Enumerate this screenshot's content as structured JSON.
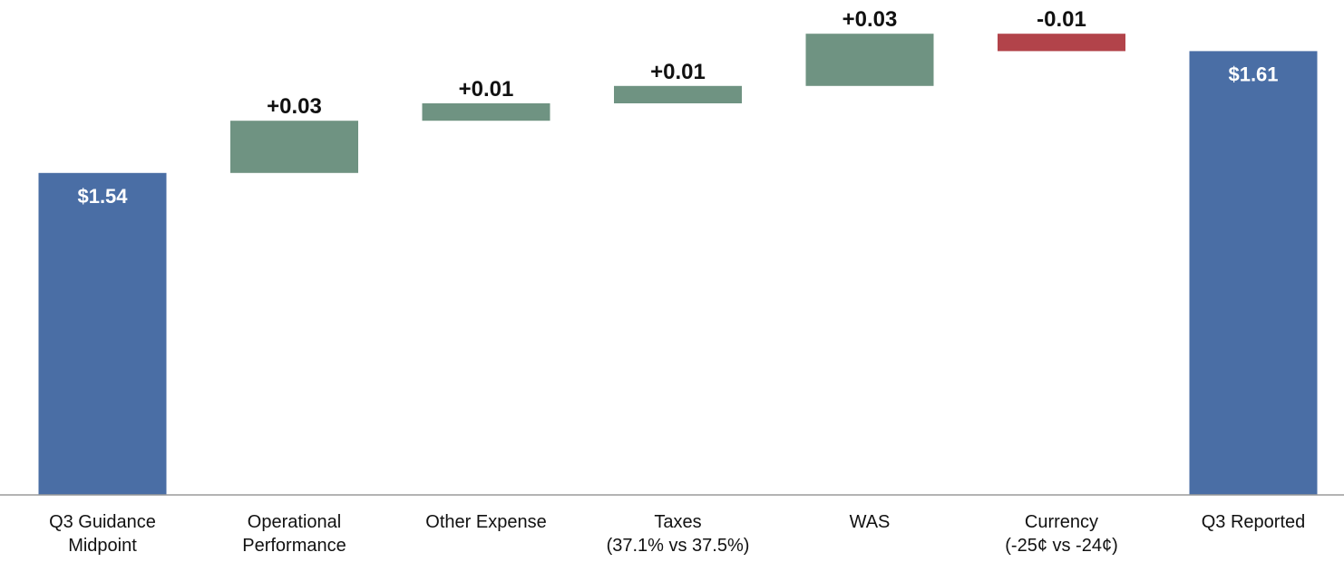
{
  "chart_data": {
    "type": "waterfall",
    "title": "",
    "xlabel": "",
    "ylabel": "",
    "ylim": [
      1.355,
      1.63
    ],
    "grid": false,
    "legend": "none",
    "colors": {
      "total": "#4a6ea5",
      "increase": "#6f9382",
      "decrease": "#b2434a",
      "axis": "#9a9a9a"
    },
    "categories": [
      [
        "Q3 Guidance",
        "Midpoint"
      ],
      [
        "Operational",
        "Performance"
      ],
      [
        "Other Expense"
      ],
      [
        "Taxes",
        "(37.1% vs 37.5%)"
      ],
      [
        "WAS"
      ],
      [
        "Currency",
        "(-25¢ vs -24¢)"
      ],
      [
        "Q3 Reported"
      ]
    ],
    "steps": [
      {
        "kind": "total",
        "start": 0,
        "end": 1.54,
        "label": "$1.54"
      },
      {
        "kind": "increase",
        "start": 1.54,
        "end": 1.57,
        "label": "+0.03"
      },
      {
        "kind": "increase",
        "start": 1.57,
        "end": 1.58,
        "label": "+0.01"
      },
      {
        "kind": "increase",
        "start": 1.58,
        "end": 1.59,
        "label": "+0.01"
      },
      {
        "kind": "increase",
        "start": 1.59,
        "end": 1.62,
        "label": "+0.03"
      },
      {
        "kind": "decrease",
        "start": 1.62,
        "end": 1.61,
        "label": "-0.01"
      },
      {
        "kind": "total",
        "start": 0,
        "end": 1.61,
        "label": "$1.61"
      }
    ]
  }
}
